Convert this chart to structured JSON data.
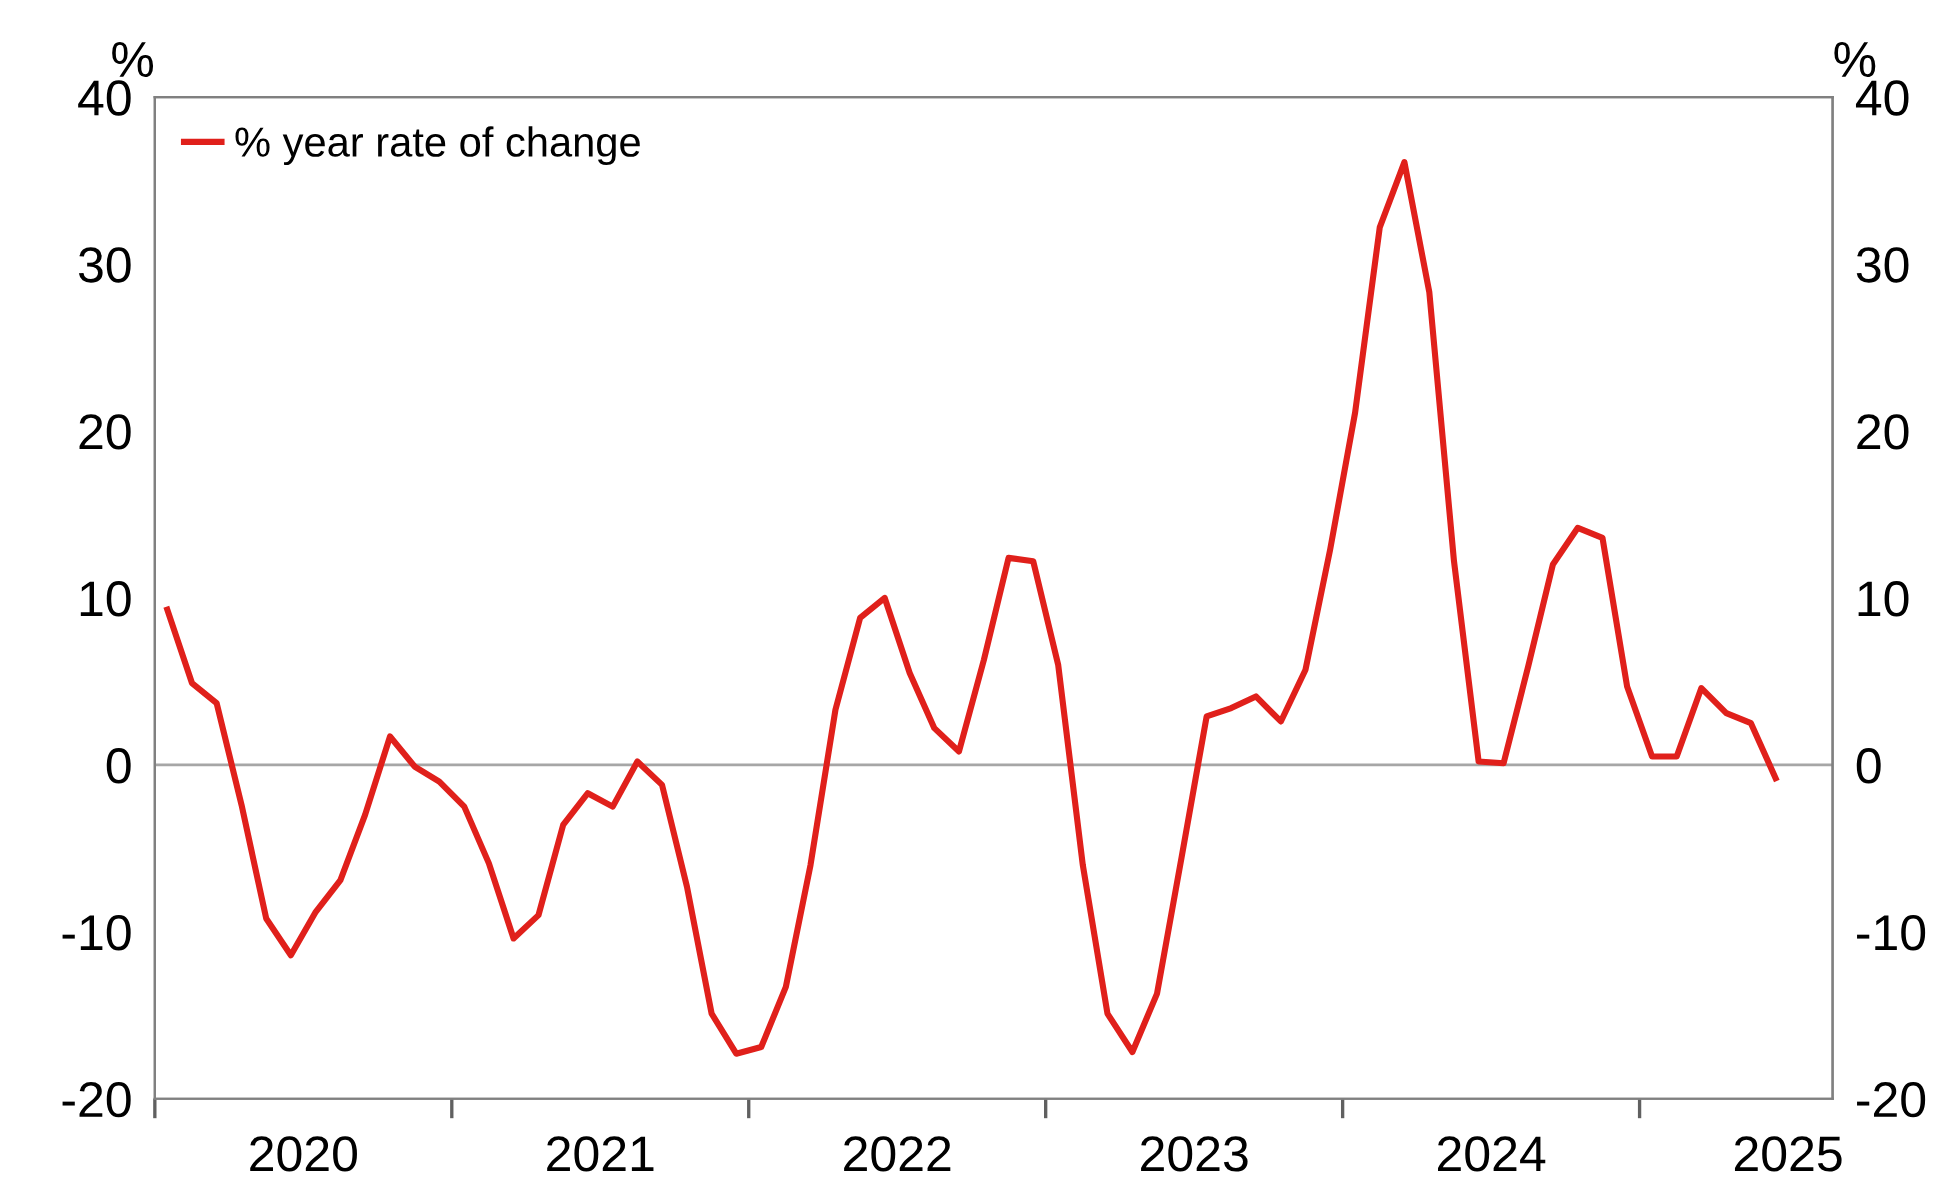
{
  "chart_data": {
    "type": "line",
    "ylabel": "%",
    "y2label": "%",
    "x": [
      2020.042,
      2020.125,
      2020.208,
      2020.292,
      2020.375,
      2020.458,
      2020.542,
      2020.625,
      2020.708,
      2020.792,
      2020.875,
      2020.958,
      2021.042,
      2021.125,
      2021.208,
      2021.292,
      2021.375,
      2021.458,
      2021.542,
      2021.625,
      2021.708,
      2021.792,
      2021.875,
      2021.958,
      2022.042,
      2022.125,
      2022.208,
      2022.292,
      2022.375,
      2022.458,
      2022.542,
      2022.625,
      2022.708,
      2022.792,
      2022.875,
      2022.958,
      2023.042,
      2023.125,
      2023.208,
      2023.292,
      2023.375,
      2023.458,
      2023.542,
      2023.625,
      2023.708,
      2023.792,
      2023.875,
      2023.958,
      2024.042,
      2024.125,
      2024.208,
      2024.292,
      2024.375,
      2024.458,
      2024.542,
      2024.625,
      2024.708,
      2024.792,
      2024.875,
      2024.958,
      2025.042,
      2025.125,
      2025.208,
      2025.292,
      2025.375,
      2025.458
    ],
    "series": [
      {
        "name": "% year rate of change",
        "color": "#e0201b",
        "values": [
          9.3,
          4.9,
          3.7,
          -2.4,
          -9.2,
          -11.4,
          -8.8,
          -6.9,
          -3.0,
          1.7,
          -0.1,
          -1.0,
          -2.5,
          -5.9,
          -10.4,
          -9.0,
          -3.6,
          -1.7,
          -2.5,
          0.2,
          -1.2,
          -7.3,
          -14.9,
          -17.3,
          -16.9,
          -13.3,
          -6.0,
          3.3,
          8.8,
          10.0,
          5.5,
          2.2,
          0.8,
          6.3,
          12.4,
          12.2,
          6.0,
          -6.0,
          -14.9,
          -17.2,
          -13.7,
          -5.5,
          2.9,
          3.4,
          4.1,
          2.6,
          5.7,
          12.9,
          21.1,
          32.2,
          36.1,
          28.3,
          12.2,
          0.2,
          0.1,
          5.9,
          12.0,
          14.2,
          13.6,
          4.7,
          0.5,
          0.5,
          4.6,
          3.1,
          2.5,
          -0.8
        ]
      }
    ],
    "xlim": [
      2020,
      2025.65
    ],
    "xticks": [
      {
        "value": 2020,
        "label": null
      },
      {
        "value": 2020.5,
        "label": "2020"
      },
      {
        "value": 2021,
        "label": null
      },
      {
        "value": 2021.5,
        "label": "2021"
      },
      {
        "value": 2022,
        "label": null
      },
      {
        "value": 2022.5,
        "label": "2022"
      },
      {
        "value": 2023,
        "label": null
      },
      {
        "value": 2023.5,
        "label": "2023"
      },
      {
        "value": 2024,
        "label": null
      },
      {
        "value": 2024.5,
        "label": "2024"
      },
      {
        "value": 2025,
        "label": null
      },
      {
        "value": 2025.5,
        "label": "2025"
      }
    ],
    "ylim": [
      -20,
      40
    ],
    "yticks": [
      -20,
      -10,
      0,
      10,
      20,
      30,
      40
    ],
    "y2lim": [
      -20,
      40
    ],
    "y2ticks": [
      -20,
      -10,
      0,
      10,
      20,
      30,
      40
    ],
    "ref_lines": [
      {
        "axis": "y",
        "value": 0,
        "color": "#a6a6a6"
      }
    ],
    "grid": false,
    "legend": "top left",
    "line_style": "solid",
    "marker": "none"
  }
}
